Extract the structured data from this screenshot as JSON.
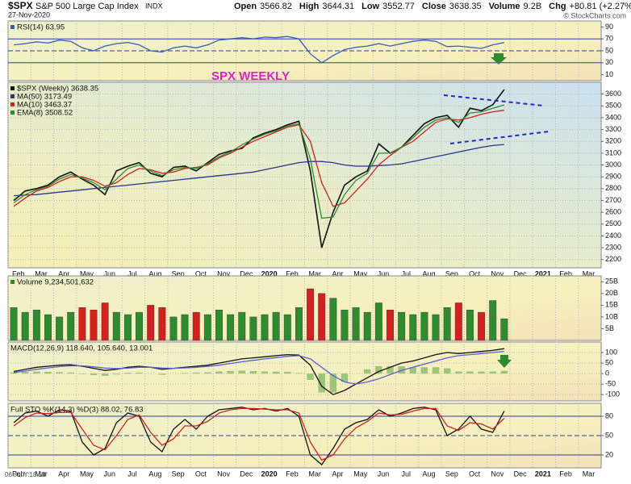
{
  "header": {
    "symbol": "$SPX",
    "name": "S&P 500 Large Cap Index",
    "exchange": "INDX",
    "date": "27-Nov-2020",
    "quote": [
      {
        "label": "Open",
        "value": "3566.82"
      },
      {
        "label": "High",
        "value": "3644.31"
      },
      {
        "label": "Low",
        "value": "3552.77"
      },
      {
        "label": "Close",
        "value": "3638.35"
      },
      {
        "label": "Volume",
        "value": "9.2B"
      },
      {
        "label": "Chg",
        "value": "+80.81 (+2.27%)"
      }
    ],
    "credit": "© StockCharts.com",
    "footer": "06 Jul Y:18.10"
  },
  "chart_data": [
    {
      "type": "line",
      "ylim": [
        0,
        100
      ],
      "yticks": [
        10,
        30,
        50,
        70,
        90
      ],
      "solid_lines": [
        30,
        70
      ],
      "dashed_lines": [
        50
      ],
      "series": [
        {
          "name": "RSI(14) 63.95",
          "color": "#2f5fbf",
          "values": [
            60,
            62,
            65,
            63,
            68,
            66,
            55,
            50,
            58,
            62,
            64,
            60,
            50,
            48,
            55,
            58,
            55,
            60,
            68,
            70,
            72,
            70,
            73,
            72,
            74,
            70,
            45,
            30,
            42,
            52,
            56,
            58,
            62,
            58,
            62,
            66,
            68,
            66,
            57,
            58,
            56,
            54,
            60,
            63.95,
            null,
            null,
            null,
            null,
            null,
            null,
            null,
            null
          ]
        }
      ]
    },
    {
      "type": "line",
      "annotation": "SPX WEEKLY",
      "ylim": [
        2130,
        3700
      ],
      "grid": true,
      "yticks": [
        2200,
        2300,
        2400,
        2500,
        2600,
        2700,
        2800,
        2900,
        3000,
        3100,
        3200,
        3300,
        3400,
        3500,
        3600
      ],
      "categories": [
        "Feb",
        null,
        "Mar",
        null,
        "Apr",
        null,
        "May",
        null,
        "Jun",
        null,
        "Jul",
        null,
        "Aug",
        null,
        "Sep",
        null,
        "Oct",
        null,
        "Nov",
        null,
        "Dec",
        null,
        "2020",
        null,
        "Feb",
        null,
        "Mar",
        null,
        "Apr",
        null,
        "May",
        null,
        "Jun",
        null,
        "Jul",
        null,
        "Aug",
        null,
        "Sep",
        null,
        "Oct",
        null,
        "Nov",
        null,
        "Dec",
        null,
        "2021",
        null,
        "Feb",
        null,
        "Mar",
        null
      ],
      "series": [
        {
          "name": "$SPX (Weekly) 3638.35",
          "color": "#111111",
          "values": [
            2700,
            2780,
            2800,
            2830,
            2900,
            2940,
            2880,
            2830,
            2750,
            2950,
            2990,
            3020,
            2930,
            2900,
            2980,
            2990,
            2950,
            3020,
            3090,
            3120,
            3140,
            3230,
            3270,
            3300,
            3340,
            3370,
            2950,
            2300,
            2600,
            2830,
            2900,
            2950,
            3180,
            3100,
            3150,
            3250,
            3350,
            3400,
            3420,
            3320,
            3480,
            3460,
            3510,
            3638.35,
            null,
            null,
            null,
            null,
            null,
            null,
            null,
            null
          ]
        },
        {
          "name": "MA(50) 3173.49",
          "color": "#283593",
          "values": [
            2740,
            2745,
            2750,
            2760,
            2770,
            2780,
            2790,
            2800,
            2810,
            2820,
            2830,
            2840,
            2850,
            2860,
            2870,
            2880,
            2890,
            2900,
            2910,
            2920,
            2930,
            2940,
            2960,
            2980,
            3000,
            3020,
            3030,
            3030,
            3020,
            3000,
            2990,
            2990,
            2995,
            3000,
            3010,
            3030,
            3050,
            3070,
            3090,
            3110,
            3130,
            3150,
            3165,
            3173.49,
            null,
            null,
            null,
            null,
            null,
            null,
            null,
            null
          ]
        },
        {
          "name": "MA(10) 3463.37",
          "color": "#d62020",
          "values": [
            2650,
            2720,
            2780,
            2810,
            2860,
            2900,
            2900,
            2870,
            2820,
            2850,
            2920,
            2970,
            2960,
            2930,
            2940,
            2970,
            2980,
            3000,
            3060,
            3100,
            3150,
            3200,
            3240,
            3280,
            3320,
            3340,
            3200,
            2850,
            2650,
            2680,
            2780,
            2880,
            3000,
            3080,
            3150,
            3200,
            3280,
            3360,
            3390,
            3380,
            3400,
            3430,
            3450,
            3463.37,
            null,
            null,
            null,
            null,
            null,
            null,
            null,
            null
          ]
        },
        {
          "name": "EMA(8) 3508.52",
          "color": "#2e8b2e",
          "values": [
            2680,
            2750,
            2790,
            2820,
            2880,
            2920,
            2890,
            2850,
            2790,
            2880,
            2970,
            3000,
            2950,
            2910,
            2960,
            2980,
            2970,
            3010,
            3070,
            3110,
            3170,
            3220,
            3260,
            3290,
            3330,
            3350,
            3050,
            2550,
            2560,
            2750,
            2870,
            2930,
            3100,
            3100,
            3150,
            3230,
            3320,
            3380,
            3400,
            3360,
            3440,
            3450,
            3480,
            3508.52,
            null,
            null,
            null,
            null,
            null,
            null,
            null,
            null
          ]
        }
      ]
    },
    {
      "type": "bar",
      "ylim": [
        0,
        27.5
      ],
      "up_color": "#2e8b2e",
      "down_color": "#d62020",
      "yticks": [
        {
          "value": 5,
          "label": "5B"
        },
        {
          "value": 10,
          "label": "10B"
        },
        {
          "value": 15,
          "label": "15B"
        },
        {
          "value": 20,
          "label": "20B"
        },
        {
          "value": 25,
          "label": "25B"
        }
      ],
      "series": [
        {
          "name": "Volume 9,234,501,632",
          "color": "#2e8b2e",
          "values": [
            14,
            12,
            13,
            11,
            10,
            12,
            14,
            13,
            16,
            12,
            11,
            12,
            15,
            14,
            10,
            11,
            12,
            11,
            13,
            11,
            12,
            10,
            11,
            12,
            11,
            14,
            22,
            20,
            18,
            13,
            14,
            12,
            16,
            13,
            12,
            11,
            12,
            11,
            14,
            16,
            13,
            12,
            17,
            9.23,
            null,
            null,
            null,
            null,
            null,
            null,
            null,
            null
          ]
        }
      ]
    },
    {
      "type": "line",
      "title": "MACD(12,26,9) 118.640, 105.640, 13.001",
      "ylim": [
        -130,
        150
      ],
      "yticks": [
        -100,
        -50,
        0,
        50,
        100
      ],
      "grid": true,
      "series": [
        {
          "type": "bar",
          "color": "#9cc47a",
          "values": [
            5,
            8,
            10,
            8,
            7,
            5,
            -2,
            -7,
            -11,
            -4,
            4,
            5,
            0,
            -6,
            0,
            3,
            5,
            6,
            10,
            12,
            14,
            12,
            10,
            9,
            8,
            3,
            -30,
            -90,
            -90,
            -40,
            0,
            20,
            35,
            35,
            35,
            30,
            30,
            30,
            25,
            10,
            10,
            10,
            10,
            13.001,
            null,
            null,
            null,
            null,
            null,
            null,
            null,
            null
          ]
        },
        {
          "color": "#111111",
          "values": [
            10,
            20,
            30,
            35,
            40,
            42,
            35,
            25,
            15,
            20,
            30,
            35,
            30,
            20,
            25,
            30,
            35,
            40,
            50,
            60,
            70,
            75,
            80,
            85,
            90,
            88,
            40,
            -60,
            -100,
            -80,
            -50,
            -20,
            10,
            30,
            50,
            60,
            75,
            90,
            100,
            95,
            100,
            105,
            110,
            118.64,
            null,
            null,
            null,
            null,
            null,
            null,
            null,
            null
          ]
        },
        {
          "color": "#5b5fd6",
          "values": [
            5,
            12,
            20,
            27,
            33,
            37,
            37,
            32,
            26,
            24,
            26,
            30,
            30,
            26,
            25,
            27,
            30,
            34,
            40,
            48,
            56,
            63,
            70,
            76,
            82,
            85,
            70,
            30,
            -10,
            -40,
            -50,
            -40,
            -25,
            -5,
            15,
            30,
            45,
            60,
            75,
            85,
            90,
            95,
            100,
            105.64,
            null,
            null,
            null,
            null,
            null,
            null,
            null,
            null
          ]
        }
      ]
    },
    {
      "type": "line",
      "title": "Full STO %K(14,3) %D(3) 88.02, 76.83",
      "ylim": [
        0,
        100
      ],
      "yticks": [
        20,
        50,
        80
      ],
      "solid_lines": [
        20,
        80
      ],
      "dashed_lines": [
        50
      ],
      "categories": [
        "Feb",
        null,
        "Mar",
        null,
        "Apr",
        null,
        "May",
        null,
        "Jun",
        null,
        "Jul",
        null,
        "Aug",
        null,
        "Sep",
        null,
        "Oct",
        null,
        "Nov",
        null,
        "Dec",
        null,
        "2020",
        null,
        "Feb",
        null,
        "Mar",
        null,
        "Apr",
        null,
        "May",
        null,
        "Jun",
        null,
        "Jul",
        null,
        "Aug",
        null,
        "Sep",
        null,
        "Oct",
        null,
        "Nov",
        null,
        "Dec",
        null,
        "2021",
        null,
        "Feb",
        null,
        "Mar",
        null
      ],
      "series": [
        {
          "color": "#111111",
          "values": [
            70,
            85,
            88,
            80,
            90,
            88,
            40,
            20,
            30,
            70,
            85,
            80,
            40,
            25,
            60,
            75,
            60,
            80,
            90,
            92,
            94,
            90,
            92,
            88,
            92,
            80,
            20,
            5,
            30,
            60,
            70,
            75,
            90,
            80,
            85,
            92,
            94,
            90,
            50,
            60,
            80,
            60,
            55,
            88.02,
            null,
            null,
            null,
            null,
            null,
            null,
            null,
            null
          ]
        },
        {
          "color": "#d62020",
          "values": [
            65,
            78,
            85,
            84,
            86,
            86,
            60,
            35,
            28,
            50,
            75,
            82,
            55,
            35,
            45,
            65,
            65,
            72,
            85,
            90,
            92,
            92,
            91,
            90,
            90,
            85,
            40,
            12,
            20,
            45,
            62,
            72,
            85,
            82,
            83,
            88,
            92,
            92,
            65,
            58,
            70,
            68,
            60,
            76.83,
            null,
            null,
            null,
            null,
            null,
            null,
            null,
            null
          ]
        }
      ]
    }
  ]
}
